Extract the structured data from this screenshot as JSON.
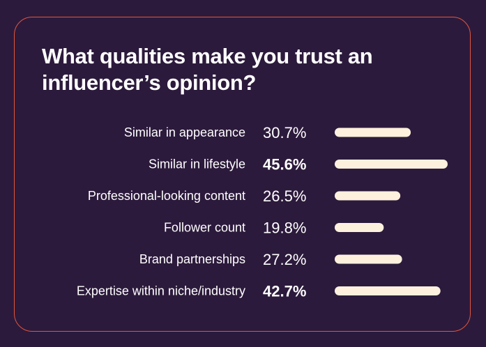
{
  "title": "What qualities make you trust an influencer’s opinion?",
  "colors": {
    "background": "#2c1a3c",
    "border": "#e0573e",
    "bar": "#fdf1de",
    "text": "#ffffff"
  },
  "chart_data": {
    "type": "bar",
    "orientation": "horizontal",
    "title": "What qualities make you trust an influencer’s opinion?",
    "categories": [
      "Similar in appearance",
      "Similar in lifestyle",
      "Professional-looking content",
      "Follower count",
      "Brand partnerships",
      "Expertise within niche/industry"
    ],
    "values": [
      30.7,
      45.6,
      26.5,
      19.8,
      27.2,
      42.7
    ],
    "value_labels": [
      "30.7%",
      "45.6%",
      "26.5%",
      "19.8%",
      "27.2%",
      "42.7%"
    ],
    "highlighted": [
      false,
      true,
      false,
      false,
      false,
      true
    ],
    "unit": "%",
    "grid": false,
    "legend": "none"
  }
}
